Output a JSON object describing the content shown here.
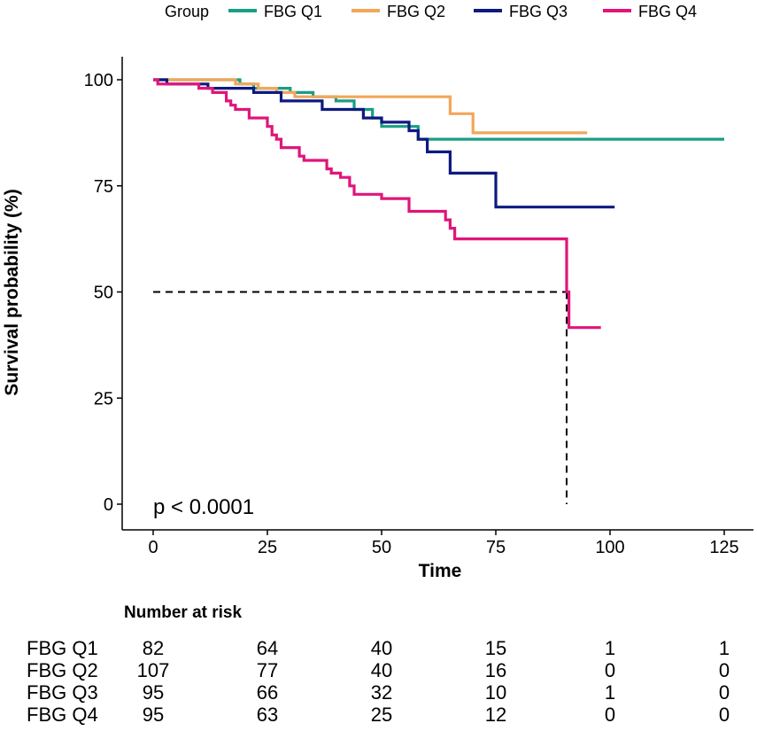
{
  "legend": {
    "title": "Group",
    "entries": [
      {
        "label": "FBG Q1",
        "color": "#1a9e84"
      },
      {
        "label": "FBG Q2",
        "color": "#f2a65a"
      },
      {
        "label": "FBG Q3",
        "color": "#0d1a80"
      },
      {
        "label": "FBG Q4",
        "color": "#e0157a"
      }
    ]
  },
  "chart_data": {
    "type": "line",
    "title": "",
    "xlabel": "Time",
    "ylabel": "Survival probability (%)",
    "xlim": [
      0,
      132
    ],
    "ylim": [
      0,
      100
    ],
    "xticks": [
      0,
      25,
      50,
      75,
      100,
      125
    ],
    "yticks": [
      0,
      25,
      50,
      75,
      100
    ],
    "grid": false,
    "legend_position": "top",
    "annotation": "p < 0.0001",
    "median_line": {
      "y": 50,
      "x": 90.5
    },
    "series": [
      {
        "name": "FBG Q1",
        "color": "#1a9e84",
        "points": [
          [
            0,
            100
          ],
          [
            19,
            100
          ],
          [
            19,
            99
          ],
          [
            22,
            99
          ],
          [
            22,
            98
          ],
          [
            30,
            98
          ],
          [
            30,
            97
          ],
          [
            35,
            97
          ],
          [
            35,
            96
          ],
          [
            40,
            96
          ],
          [
            40,
            95
          ],
          [
            44,
            95
          ],
          [
            44,
            93
          ],
          [
            48,
            93
          ],
          [
            48,
            91
          ],
          [
            50,
            91
          ],
          [
            50,
            89
          ],
          [
            58,
            89
          ],
          [
            58,
            86
          ],
          [
            125,
            86
          ]
        ]
      },
      {
        "name": "FBG Q2",
        "color": "#f2a65a",
        "points": [
          [
            0,
            100
          ],
          [
            18,
            100
          ],
          [
            18,
            99
          ],
          [
            23,
            99
          ],
          [
            23,
            98
          ],
          [
            27,
            98
          ],
          [
            27,
            97
          ],
          [
            31,
            97
          ],
          [
            31,
            96
          ],
          [
            65,
            96
          ],
          [
            65,
            92
          ],
          [
            70,
            92
          ],
          [
            70,
            87.5
          ],
          [
            95,
            87.5
          ]
        ]
      },
      {
        "name": "FBG Q3",
        "color": "#0d1a80",
        "points": [
          [
            0,
            100
          ],
          [
            3,
            100
          ],
          [
            3,
            99
          ],
          [
            12,
            99
          ],
          [
            12,
            98
          ],
          [
            22,
            98
          ],
          [
            22,
            97
          ],
          [
            28,
            97
          ],
          [
            28,
            95
          ],
          [
            37,
            95
          ],
          [
            37,
            93
          ],
          [
            46,
            93
          ],
          [
            46,
            91
          ],
          [
            50,
            91
          ],
          [
            50,
            90
          ],
          [
            56,
            90
          ],
          [
            56,
            88
          ],
          [
            58,
            88
          ],
          [
            58,
            86
          ],
          [
            60,
            86
          ],
          [
            60,
            83
          ],
          [
            65,
            83
          ],
          [
            65,
            78
          ],
          [
            75,
            78
          ],
          [
            75,
            70
          ],
          [
            101,
            70
          ]
        ]
      },
      {
        "name": "FBG Q4",
        "color": "#e0157a",
        "points": [
          [
            0,
            100
          ],
          [
            1,
            100
          ],
          [
            1,
            99
          ],
          [
            10,
            99
          ],
          [
            10,
            98
          ],
          [
            13,
            98
          ],
          [
            13,
            97
          ],
          [
            16,
            97
          ],
          [
            16,
            95
          ],
          [
            17,
            95
          ],
          [
            17,
            94
          ],
          [
            18,
            94
          ],
          [
            18,
            93
          ],
          [
            21,
            93
          ],
          [
            21,
            91
          ],
          [
            25,
            91
          ],
          [
            25,
            89
          ],
          [
            26,
            89
          ],
          [
            26,
            87
          ],
          [
            27,
            87
          ],
          [
            27,
            86
          ],
          [
            28,
            86
          ],
          [
            28,
            84
          ],
          [
            32,
            84
          ],
          [
            32,
            82
          ],
          [
            33,
            82
          ],
          [
            33,
            81
          ],
          [
            38,
            81
          ],
          [
            38,
            79
          ],
          [
            39,
            79
          ],
          [
            39,
            78
          ],
          [
            41,
            78
          ],
          [
            41,
            77
          ],
          [
            43,
            77
          ],
          [
            43,
            75
          ],
          [
            44,
            75
          ],
          [
            44,
            73
          ],
          [
            50,
            73
          ],
          [
            50,
            72
          ],
          [
            56,
            72
          ],
          [
            56,
            69
          ],
          [
            64,
            69
          ],
          [
            64,
            67
          ],
          [
            65,
            67
          ],
          [
            65,
            65
          ],
          [
            66,
            65
          ],
          [
            66,
            62.5
          ],
          [
            90.5,
            62.5
          ],
          [
            90.5,
            50
          ],
          [
            91,
            50
          ],
          [
            91,
            41.6
          ],
          [
            98,
            41.6
          ]
        ]
      }
    ]
  },
  "risk_table": {
    "title": "Number at risk",
    "times": [
      0,
      25,
      50,
      75,
      100,
      125
    ],
    "rows": [
      {
        "group": "FBG Q1",
        "counts": [
          "82",
          "64",
          "40",
          "15",
          "1",
          "1"
        ]
      },
      {
        "group": "FBG Q2",
        "counts": [
          "107",
          "77",
          "40",
          "16",
          "0",
          "0"
        ]
      },
      {
        "group": "FBG Q3",
        "counts": [
          "95",
          "66",
          "32",
          "10",
          "1",
          "0"
        ]
      },
      {
        "group": "FBG Q4",
        "counts": [
          "95",
          "63",
          "25",
          "12",
          "0",
          "0"
        ]
      }
    ]
  }
}
